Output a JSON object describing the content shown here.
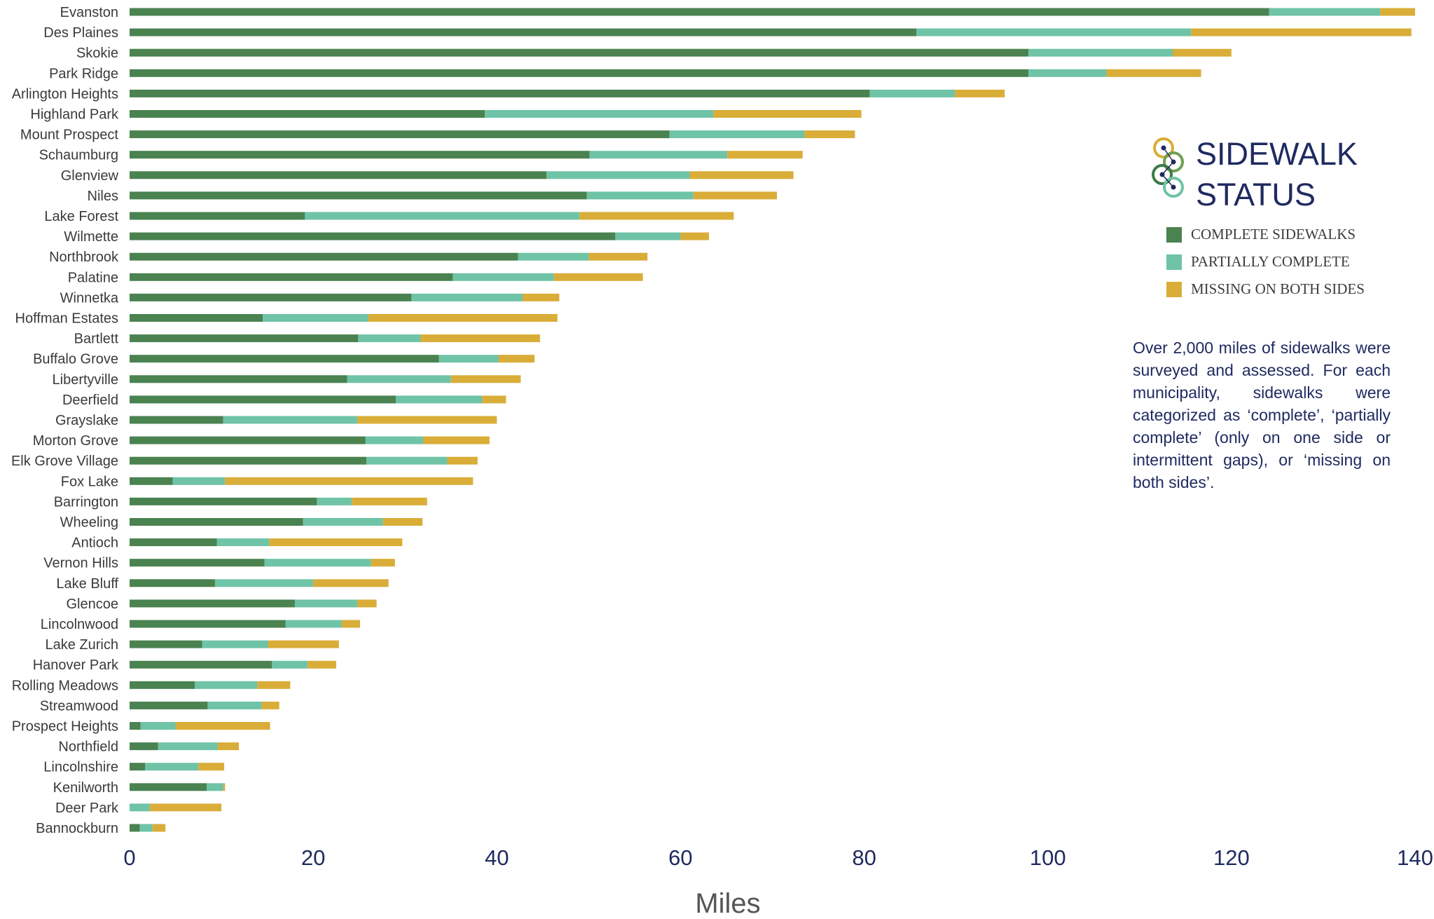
{
  "chart_data": {
    "type": "bar",
    "orientation": "horizontal",
    "stacked": true,
    "categories": [
      "Evanston",
      "Des Plaines",
      "Skokie",
      "Park Ridge",
      "Arlington Heights",
      "Highland Park",
      "Mount Prospect",
      "Schaumburg",
      "Glenview",
      "Niles",
      "Lake Forest",
      "Wilmette",
      "Northbrook",
      "Palatine",
      "Winnetka",
      "Hoffman Estates",
      "Bartlett",
      "Buffalo Grove",
      "Libertyville",
      "Deerfield",
      "Grayslake",
      "Morton Grove",
      "Elk Grove Village",
      "Fox Lake",
      "Barrington",
      "Wheeling",
      "Antioch",
      "Vernon Hills",
      "Lake Bluff",
      "Glencoe",
      "Lincolnwood",
      "Lake Zurich",
      "Hanover Park",
      "Rolling Meadows",
      "Streamwood",
      "Prospect Heights",
      "Northfield",
      "Lincolnshire",
      "Kenilworth",
      "Deer Park",
      "Bannockburn"
    ],
    "series": [
      {
        "name": "COMPLETE SIDEWALKS",
        "color": "#4a8250",
        "values": [
          124.1,
          85.7,
          97.9,
          97.9,
          80.6,
          38.7,
          58.8,
          50.1,
          45.4,
          49.8,
          19.1,
          52.9,
          42.3,
          35.2,
          30.7,
          14.5,
          24.9,
          33.7,
          23.7,
          29.0,
          10.2,
          25.7,
          25.8,
          4.7,
          20.4,
          18.9,
          9.5,
          14.7,
          9.3,
          18.0,
          17.0,
          7.9,
          15.5,
          7.1,
          8.5,
          1.2,
          3.1,
          1.7,
          8.4,
          0.0,
          1.1
        ]
      },
      {
        "name": "PARTIALLY COMPLETE",
        "color": "#6fc3a6",
        "values": [
          12.1,
          29.9,
          15.7,
          8.5,
          9.3,
          24.9,
          14.7,
          15.0,
          15.6,
          11.6,
          29.9,
          7.1,
          7.7,
          11.0,
          12.1,
          11.5,
          6.8,
          6.5,
          11.3,
          9.4,
          14.6,
          6.3,
          8.8,
          5.7,
          3.8,
          8.7,
          5.7,
          11.6,
          10.7,
          6.8,
          6.1,
          7.2,
          3.9,
          6.8,
          5.9,
          3.8,
          6.5,
          5.8,
          1.8,
          2.2,
          1.4
        ]
      },
      {
        "name": "MISSING ON BOTH SIDES",
        "color": "#d9ad38",
        "values": [
          3.8,
          24.0,
          6.4,
          10.3,
          5.4,
          16.1,
          5.5,
          8.2,
          11.3,
          9.1,
          16.8,
          3.1,
          6.4,
          9.7,
          4.0,
          20.6,
          13.0,
          3.9,
          7.6,
          2.6,
          15.2,
          7.2,
          3.3,
          27.0,
          8.2,
          4.3,
          14.5,
          2.6,
          8.2,
          2.1,
          2.0,
          7.7,
          3.1,
          3.6,
          1.9,
          10.3,
          2.3,
          2.8,
          0.2,
          7.8,
          1.4
        ]
      }
    ],
    "xlabel": "Miles",
    "xlim": [
      0,
      140
    ],
    "xticks": [
      "0",
      "20",
      "40",
      "60",
      "80",
      "100",
      "120",
      "140"
    ],
    "grid": false,
    "legend": {
      "title_line1": "SIDEWALK",
      "title_line2": "STATUS",
      "position": "right",
      "items": [
        "COMPLETE SIDEWALKS",
        "PARTIALLY COMPLETE",
        "MISSING ON BOTH SIDES"
      ]
    },
    "annotation": "Over 2,000 miles of sidewalks were surveyed and assessed. For each municipality, sidewalks were categorized as ‘complete’, ‘partially complete’ (only on one side or intermittent gaps), or ‘missing on both sides’."
  }
}
